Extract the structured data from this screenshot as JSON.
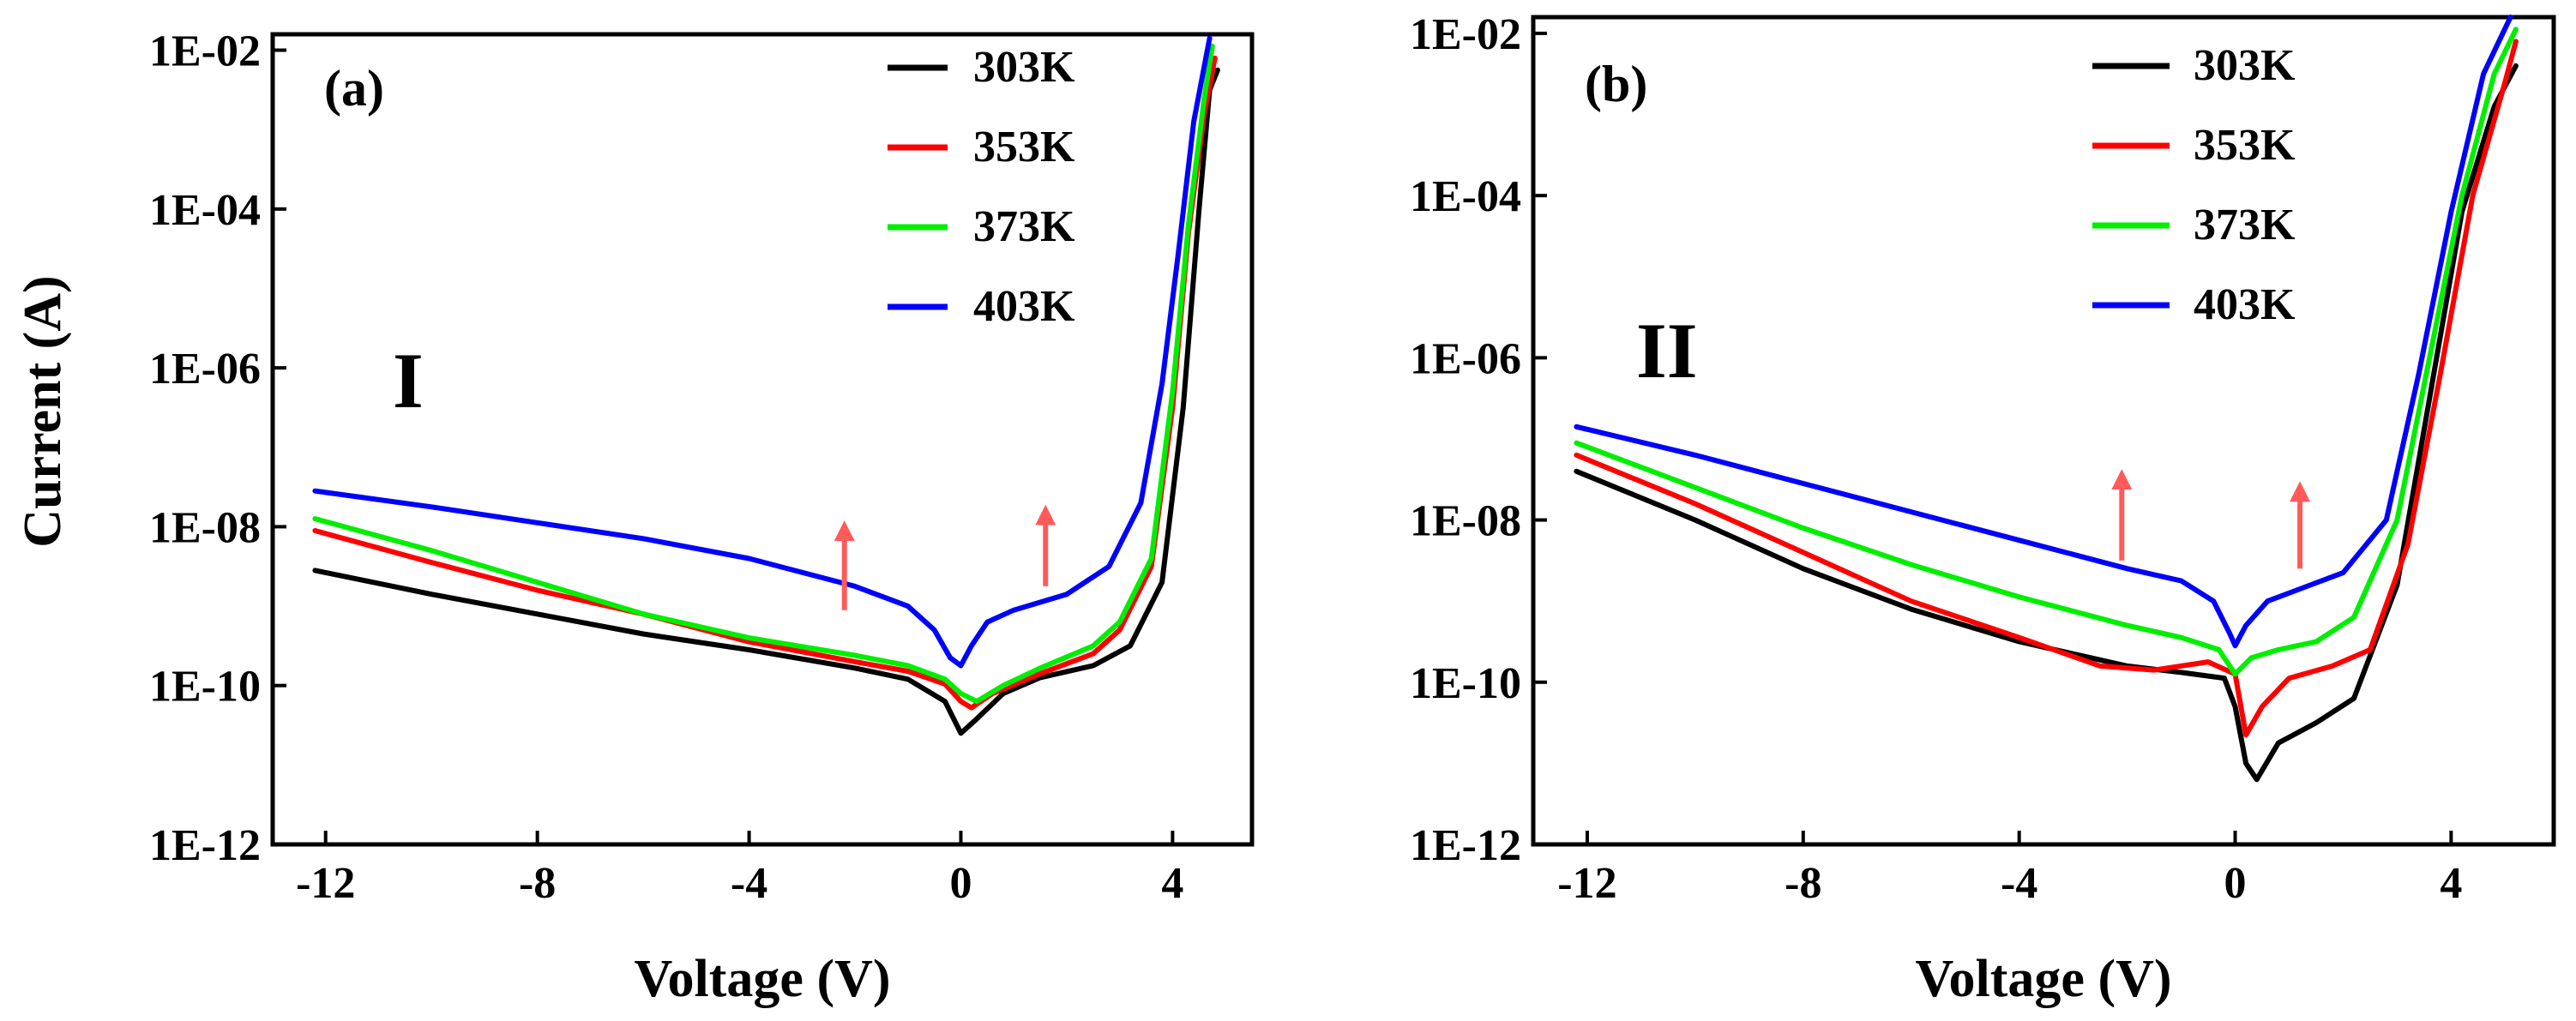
{
  "figure": {
    "y_axis_label": "Current (A)"
  },
  "chart_data": [
    {
      "type": "line",
      "panel_label": "(a)",
      "roman_label": "I",
      "xlabel": "Voltage (V)",
      "ylabel": "Current (A)",
      "xlim": [
        -13.0,
        5.5
      ],
      "ylim_log10": [
        -12,
        -1.8
      ],
      "y_scale": "log",
      "grid": false,
      "legend_position": "top-right",
      "x_ticks": [
        -12,
        -8,
        -4,
        0,
        4
      ],
      "x_tick_labels": [
        "-12",
        "-8",
        "-4",
        "0",
        "4"
      ],
      "y_ticks_log10": [
        -2,
        -4,
        -6,
        -8,
        -10,
        -12
      ],
      "y_tick_labels": [
        "1E-02",
        "1E-04",
        "1E-06",
        "1E-08",
        "1E-10",
        "1E-12"
      ],
      "annotations": [
        {
          "type": "arrow",
          "x": -2.2,
          "log10_y_from": -9.05,
          "log10_y_to": -7.9,
          "color": "#ff5a5a"
        },
        {
          "type": "arrow",
          "x": 1.6,
          "log10_y_from": -8.75,
          "log10_y_to": -7.7,
          "color": "#ff5a5a"
        }
      ],
      "series": [
        {
          "name": "303K",
          "color": "#000000",
          "x": [
            -12.2,
            -10,
            -8,
            -6,
            -4,
            -2,
            -1,
            -0.3,
            0,
            0.3,
            0.8,
            1.5,
            2.5,
            3.2,
            3.8,
            4.2,
            4.5,
            4.7,
            4.85
          ],
          "log10_y": [
            -8.55,
            -8.85,
            -9.1,
            -9.35,
            -9.55,
            -9.78,
            -9.92,
            -10.2,
            -10.6,
            -10.42,
            -10.1,
            -9.9,
            -9.75,
            -9.5,
            -8.7,
            -6.5,
            -4.0,
            -2.5,
            -2.25
          ]
        },
        {
          "name": "353K",
          "color": "#ff0000",
          "x": [
            -12.2,
            -10,
            -8,
            -6,
            -4,
            -2,
            -1,
            -0.3,
            0,
            0.2,
            0.6,
            1.5,
            2.5,
            3.0,
            3.6,
            4.0,
            4.3,
            4.6,
            4.8
          ],
          "log10_y": [
            -8.05,
            -8.45,
            -8.8,
            -9.1,
            -9.45,
            -9.7,
            -9.82,
            -9.98,
            -10.2,
            -10.28,
            -10.1,
            -9.85,
            -9.6,
            -9.3,
            -8.5,
            -6.5,
            -4.3,
            -2.8,
            -2.1
          ]
        },
        {
          "name": "373K",
          "color": "#00ee00",
          "x": [
            -12.2,
            -10,
            -8,
            -6,
            -4,
            -2,
            -1,
            -0.3,
            0,
            0.3,
            0.8,
            1.5,
            2.5,
            3.0,
            3.6,
            4.0,
            4.3,
            4.6,
            4.75
          ],
          "log10_y": [
            -7.9,
            -8.3,
            -8.7,
            -9.1,
            -9.4,
            -9.62,
            -9.75,
            -9.92,
            -10.1,
            -10.2,
            -10.0,
            -9.78,
            -9.5,
            -9.2,
            -8.4,
            -6.3,
            -4.2,
            -2.6,
            -1.95
          ]
        },
        {
          "name": "403K",
          "color": "#0000ff",
          "x": [
            -12.2,
            -10,
            -8,
            -6,
            -4,
            -2,
            -1,
            -0.5,
            -0.2,
            0,
            0.2,
            0.5,
            1.0,
            2.0,
            2.8,
            3.4,
            3.8,
            4.1,
            4.4,
            4.7
          ],
          "log10_y": [
            -7.55,
            -7.75,
            -7.95,
            -8.15,
            -8.4,
            -8.75,
            -9.0,
            -9.3,
            -9.65,
            -9.75,
            -9.5,
            -9.2,
            -9.05,
            -8.85,
            -8.5,
            -7.7,
            -6.2,
            -4.6,
            -2.9,
            -1.85
          ]
        }
      ]
    },
    {
      "type": "line",
      "panel_label": "(b)",
      "roman_label": "II",
      "xlabel": "Voltage (V)",
      "ylabel": "",
      "xlim": [
        -13.0,
        5.9
      ],
      "ylim_log10": [
        -12,
        -1.8
      ],
      "y_scale": "log",
      "grid": false,
      "legend_position": "top-right",
      "x_ticks": [
        -12,
        -8,
        -4,
        0,
        4
      ],
      "x_tick_labels": [
        "-12",
        "-8",
        "-4",
        "0",
        "4"
      ],
      "y_ticks_log10": [
        -2,
        -4,
        -6,
        -8,
        -10,
        -12
      ],
      "y_tick_labels": [
        "1E-02",
        "1E-04",
        "1E-06",
        "1E-08",
        "1E-10",
        "1E-12"
      ],
      "annotations": [
        {
          "type": "arrow",
          "x": -2.1,
          "log10_y_from": -8.5,
          "log10_y_to": -7.35,
          "color": "#ff5a5a"
        },
        {
          "type": "arrow",
          "x": 1.2,
          "log10_y_from": -8.6,
          "log10_y_to": -7.5,
          "color": "#ff5a5a"
        }
      ],
      "series": [
        {
          "name": "303K",
          "color": "#000000",
          "x": [
            -12.2,
            -10,
            -8,
            -6,
            -4,
            -2,
            -1,
            -0.2,
            0,
            0.2,
            0.4,
            0.8,
            1.5,
            2.2,
            3.0,
            3.6,
            4.2,
            4.8,
            5.2
          ],
          "log10_y": [
            -7.4,
            -8.0,
            -8.6,
            -9.1,
            -9.5,
            -9.8,
            -9.88,
            -9.95,
            -10.3,
            -11.0,
            -11.2,
            -10.75,
            -10.5,
            -10.2,
            -8.8,
            -6.5,
            -4.2,
            -2.9,
            -2.4
          ]
        },
        {
          "name": "353K",
          "color": "#ff0000",
          "x": [
            -12.2,
            -10,
            -8,
            -6,
            -4,
            -2.5,
            -1.5,
            -0.5,
            0,
            0.2,
            0.5,
            1.0,
            1.8,
            2.5,
            3.2,
            3.8,
            4.4,
            5.0,
            5.2
          ],
          "log10_y": [
            -7.2,
            -7.8,
            -8.4,
            -9.0,
            -9.45,
            -9.8,
            -9.85,
            -9.75,
            -9.9,
            -10.65,
            -10.3,
            -9.95,
            -9.8,
            -9.6,
            -8.3,
            -6.2,
            -4.0,
            -2.6,
            -2.1
          ]
        },
        {
          "name": "373K",
          "color": "#00ee00",
          "x": [
            -12.2,
            -10,
            -8,
            -6,
            -4,
            -2,
            -1,
            -0.3,
            0,
            0.3,
            0.8,
            1.5,
            2.2,
            3.0,
            3.6,
            4.2,
            4.8,
            5.2
          ],
          "log10_y": [
            -7.05,
            -7.6,
            -8.1,
            -8.55,
            -8.95,
            -9.3,
            -9.45,
            -9.6,
            -9.9,
            -9.7,
            -9.6,
            -9.5,
            -9.2,
            -8.0,
            -6.0,
            -4.0,
            -2.5,
            -1.95
          ]
        },
        {
          "name": "403K",
          "color": "#0000ff",
          "x": [
            -12.2,
            -10,
            -8,
            -6,
            -4,
            -2,
            -1,
            -0.4,
            -0.1,
            0,
            0.2,
            0.6,
            1.2,
            2.0,
            2.8,
            3.4,
            4.0,
            4.6,
            5.1
          ],
          "log10_y": [
            -6.85,
            -7.2,
            -7.55,
            -7.9,
            -8.25,
            -8.6,
            -8.75,
            -9.0,
            -9.4,
            -9.55,
            -9.3,
            -9.0,
            -8.85,
            -8.65,
            -8.0,
            -6.2,
            -4.2,
            -2.5,
            -1.8
          ]
        }
      ]
    }
  ]
}
